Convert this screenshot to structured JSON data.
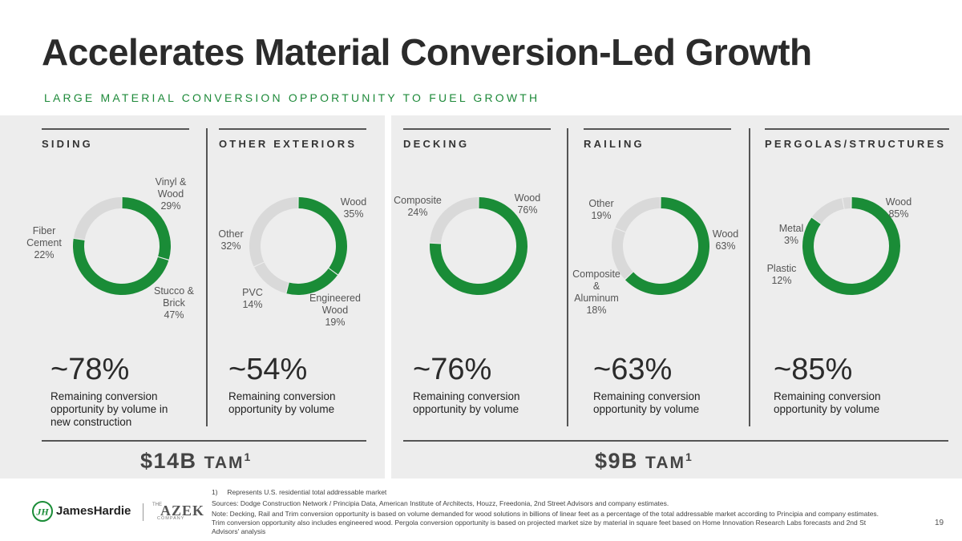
{
  "title": "Accelerates Material Conversion-Led Growth",
  "subtitle": "LARGE MATERIAL CONVERSION OPPORTUNITY TO FUEL GROWTH",
  "colors": {
    "green": "#1a8c37",
    "gray": "#d9d9d9",
    "accent_text": "#1e8a3a"
  },
  "chart_data": [
    {
      "type": "pie",
      "title": "SIDING",
      "slices": [
        {
          "label": "Vinyl & Wood",
          "value": 29,
          "highlight": true
        },
        {
          "label": "Stucco & Brick",
          "value": 47,
          "highlight": true
        },
        {
          "label": "Fiber Cement",
          "value": 22,
          "highlight": false
        }
      ],
      "big": "~78%",
      "desc": "Remaining conversion opportunity by volume in new construction"
    },
    {
      "type": "pie",
      "title": "OTHER EXTERIORS",
      "slices": [
        {
          "label": "Wood",
          "value": 35,
          "highlight": true
        },
        {
          "label": "Engineered Wood",
          "value": 19,
          "highlight": true
        },
        {
          "label": "PVC",
          "value": 14,
          "highlight": false
        },
        {
          "label": "Other",
          "value": 32,
          "highlight": false
        }
      ],
      "big": "~54%",
      "desc": "Remaining conversion opportunity by volume"
    },
    {
      "type": "pie",
      "title": "DECKING",
      "slices": [
        {
          "label": "Wood",
          "value": 76,
          "highlight": true
        },
        {
          "label": "Composite",
          "value": 24,
          "highlight": false
        }
      ],
      "big": "~76%",
      "desc": "Remaining conversion opportunity by volume"
    },
    {
      "type": "pie",
      "title": "RAILING",
      "slices": [
        {
          "label": "Wood",
          "value": 63,
          "highlight": true
        },
        {
          "label": "Composite & Aluminum",
          "value": 18,
          "highlight": false
        },
        {
          "label": "Other",
          "value": 19,
          "highlight": false
        }
      ],
      "big": "~63%",
      "desc": "Remaining conversion opportunity by volume"
    },
    {
      "type": "pie",
      "title": "PERGOLAS/STRUCTURES",
      "slices": [
        {
          "label": "Wood",
          "value": 85,
          "highlight": true
        },
        {
          "label": "Plastic",
          "value": 12,
          "highlight": false
        },
        {
          "label": "Metal",
          "value": 3,
          "highlight": false
        }
      ],
      "big": "~85%",
      "desc": "Remaining conversion opportunity by volume"
    }
  ],
  "labels": {
    "siding": {
      "vinyl_name": "Vinyl & Wood",
      "vinyl_pct": "29%",
      "stucco_name": "Stucco & Brick",
      "stucco_pct": "47%",
      "fiber_name": "Fiber Cement",
      "fiber_pct": "22%"
    },
    "other": {
      "wood_name": "Wood",
      "wood_pct": "35%",
      "eng_name": "Engineered Wood",
      "eng_pct": "19%",
      "pvc_name": "PVC",
      "pvc_pct": "14%",
      "other_name": "Other",
      "other_pct": "32%"
    },
    "decking": {
      "wood_name": "Wood",
      "wood_pct": "76%",
      "comp_name": "Composite",
      "comp_pct": "24%"
    },
    "railing": {
      "wood_name": "Wood",
      "wood_pct": "63%",
      "comp_name": "Composite & Aluminum",
      "comp_pct": "18%",
      "other_name": "Other",
      "other_pct": "19%"
    },
    "pergolas": {
      "wood_name": "Wood",
      "wood_pct": "85%",
      "plastic_name": "Plastic",
      "plastic_pct": "12%",
      "metal_name": "Metal",
      "metal_pct": "3%"
    }
  },
  "tam_left": {
    "value": "$14B",
    "label": "TAM",
    "sup": "1"
  },
  "tam_right": {
    "value": "$9B",
    "label": "TAM",
    "sup": "1"
  },
  "footnotes": {
    "note1_num": "1)",
    "note1": "Represents U.S. residential total addressable market",
    "sources": "Sources: Dodge Construction Network / Principia Data, American Institute of Architects, Houzz, Freedonia, 2nd Street Advisors and company estimates.",
    "note": "Note: Decking, Rail and Trim conversion opportunity is based on volume demanded for wood solutions in billions of linear feet as a percentage of the total addressable market according to Principia and company estimates. Trim conversion opportunity also includes engineered wood. Pergola conversion opportunity is based on projected market size by material in square feet based on Home Innovation Research Labs forecasts and 2nd St Advisors' analysis"
  },
  "page_number": "19",
  "logos": {
    "jameshardie": "JamesHardie",
    "azek": "AZEK",
    "azek_the": "THE",
    "azek_company": "COMPANY",
    "jh_mark": "JH"
  }
}
